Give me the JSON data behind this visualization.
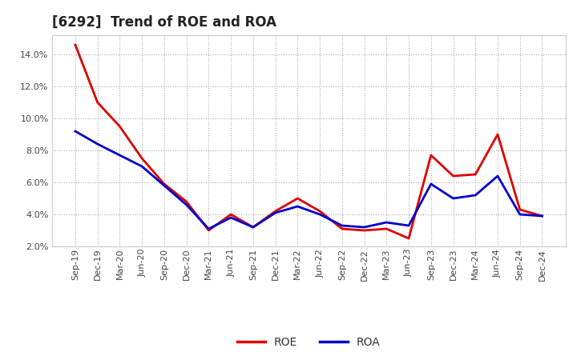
{
  "title": "[6292]  Trend of ROE and ROA",
  "labels": [
    "Sep-19",
    "Dec-19",
    "Mar-20",
    "Jun-20",
    "Sep-20",
    "Dec-20",
    "Mar-21",
    "Jun-21",
    "Sep-21",
    "Dec-21",
    "Mar-22",
    "Jun-22",
    "Sep-22",
    "Dec-22",
    "Mar-23",
    "Jun-23",
    "Sep-23",
    "Dec-23",
    "Mar-24",
    "Jun-24",
    "Sep-24",
    "Dec-24"
  ],
  "ROE": [
    14.6,
    11.0,
    9.5,
    7.5,
    5.9,
    4.8,
    3.0,
    4.0,
    3.2,
    4.2,
    5.0,
    4.2,
    3.1,
    3.0,
    3.1,
    2.5,
    7.7,
    6.4,
    6.5,
    9.0,
    4.3,
    3.9
  ],
  "ROA": [
    9.2,
    8.4,
    7.7,
    7.0,
    5.8,
    4.6,
    3.1,
    3.8,
    3.2,
    4.1,
    4.5,
    4.0,
    3.3,
    3.2,
    3.5,
    3.3,
    5.9,
    5.0,
    5.2,
    6.4,
    4.0,
    3.9
  ],
  "ROE_color": "#dd0000",
  "ROA_color": "#0000cc",
  "bg_color": "#ffffff",
  "plot_bg_color": "#ffffff",
  "grid_color": "#aaaaaa",
  "ylim_min": 2.0,
  "ylim_max": 15.2,
  "yticks": [
    2.0,
    4.0,
    6.0,
    8.0,
    10.0,
    12.0,
    14.0
  ],
  "line_width": 2.0,
  "title_fontsize": 12,
  "tick_fontsize": 8,
  "legend_fontsize": 10
}
